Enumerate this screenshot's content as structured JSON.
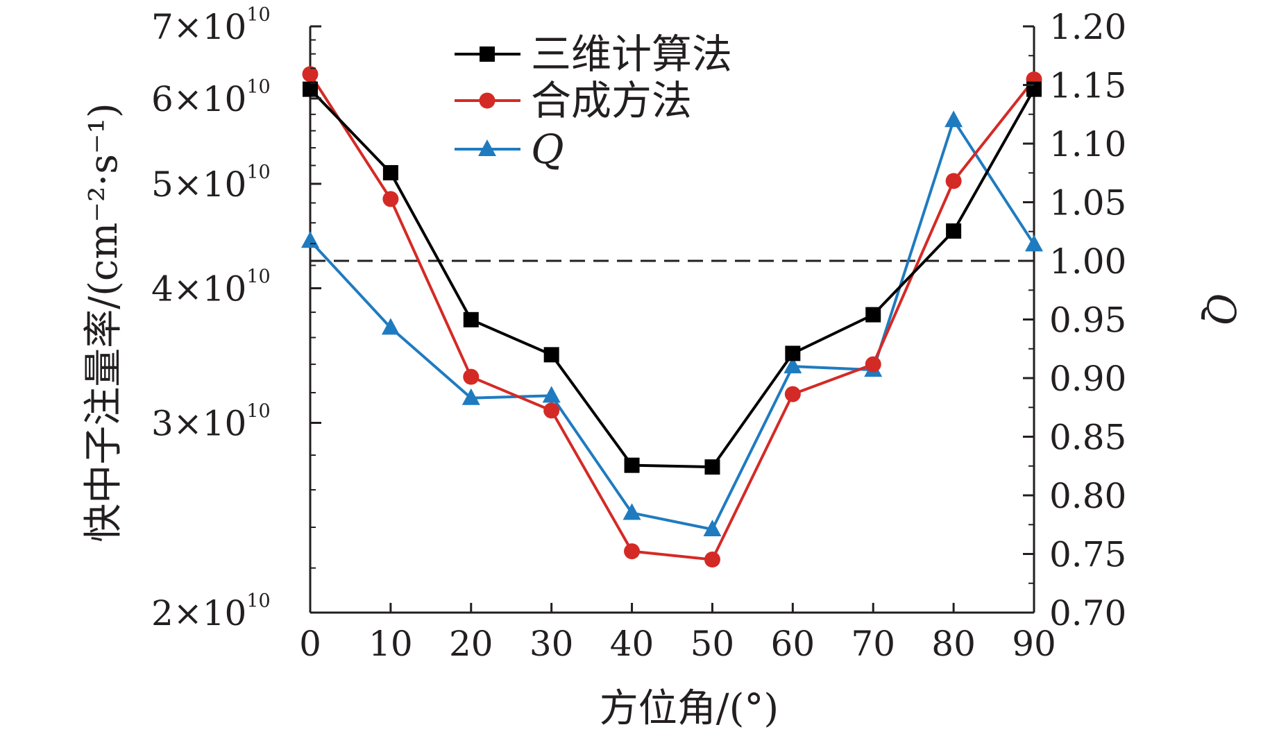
{
  "chart_data": {
    "type": "line",
    "x": [
      0,
      10,
      20,
      30,
      40,
      50,
      60,
      70,
      80,
      90
    ],
    "xticks": [
      "0",
      "10",
      "20",
      "30",
      "40",
      "50",
      "60",
      "70",
      "80",
      "90"
    ],
    "xlabel": "方位角/(°)",
    "ylabel": "快中子注量率/(cm⁻²·s⁻¹)",
    "y2label": "Q",
    "xlim": [
      0,
      90
    ],
    "ylim": [
      20000000000.0,
      70000000000.0
    ],
    "y_scale": "log",
    "y2lim": [
      0.7,
      1.2
    ],
    "yticks": [
      {
        "value": 20000000000.0,
        "mant": "2×10",
        "exp": "10"
      },
      {
        "value": 30000000000.0,
        "mant": "3×10",
        "exp": "10"
      },
      {
        "value": 40000000000.0,
        "mant": "4×10",
        "exp": "10"
      },
      {
        "value": 50000000000.0,
        "mant": "5×10",
        "exp": "10"
      },
      {
        "value": 60000000000.0,
        "mant": "6×10",
        "exp": "10"
      },
      {
        "value": 70000000000.0,
        "mant": "7×10",
        "exp": "10"
      }
    ],
    "y2ticks": [
      "0.70",
      "0.75",
      "0.80",
      "0.85",
      "0.90",
      "0.95",
      "1.00",
      "1.05",
      "1.10",
      "1.15",
      "1.20"
    ],
    "reference_line": {
      "axis": "right",
      "value": 1.0,
      "style": "dashed"
    },
    "legend_position": "top-center",
    "grid": false,
    "series": [
      {
        "name": "三维计算法",
        "axis": "left",
        "color": "#000000",
        "marker": "square",
        "values": [
          61200000000.0,
          51200000000.0,
          37400000000.0,
          34700000000.0,
          27400000000.0,
          27300000000.0,
          34800000000.0,
          37800000000.0,
          45200000000.0,
          61200000000.0
        ]
      },
      {
        "name": "合成方法",
        "axis": "left",
        "color": "#d42a25",
        "marker": "circle",
        "values": [
          63200000000.0,
          48400000000.0,
          33100000000.0,
          30800000000.0,
          22800000000.0,
          22400000000.0,
          31900000000.0,
          34000000000.0,
          50300000000.0,
          62500000000.0
        ]
      },
      {
        "name": "Q",
        "axis": "right",
        "color": "#1f7bbf",
        "marker": "triangle",
        "values": [
          1.017,
          0.943,
          0.883,
          0.885,
          0.785,
          0.771,
          0.91,
          0.907,
          1.12,
          1.014
        ]
      }
    ]
  }
}
